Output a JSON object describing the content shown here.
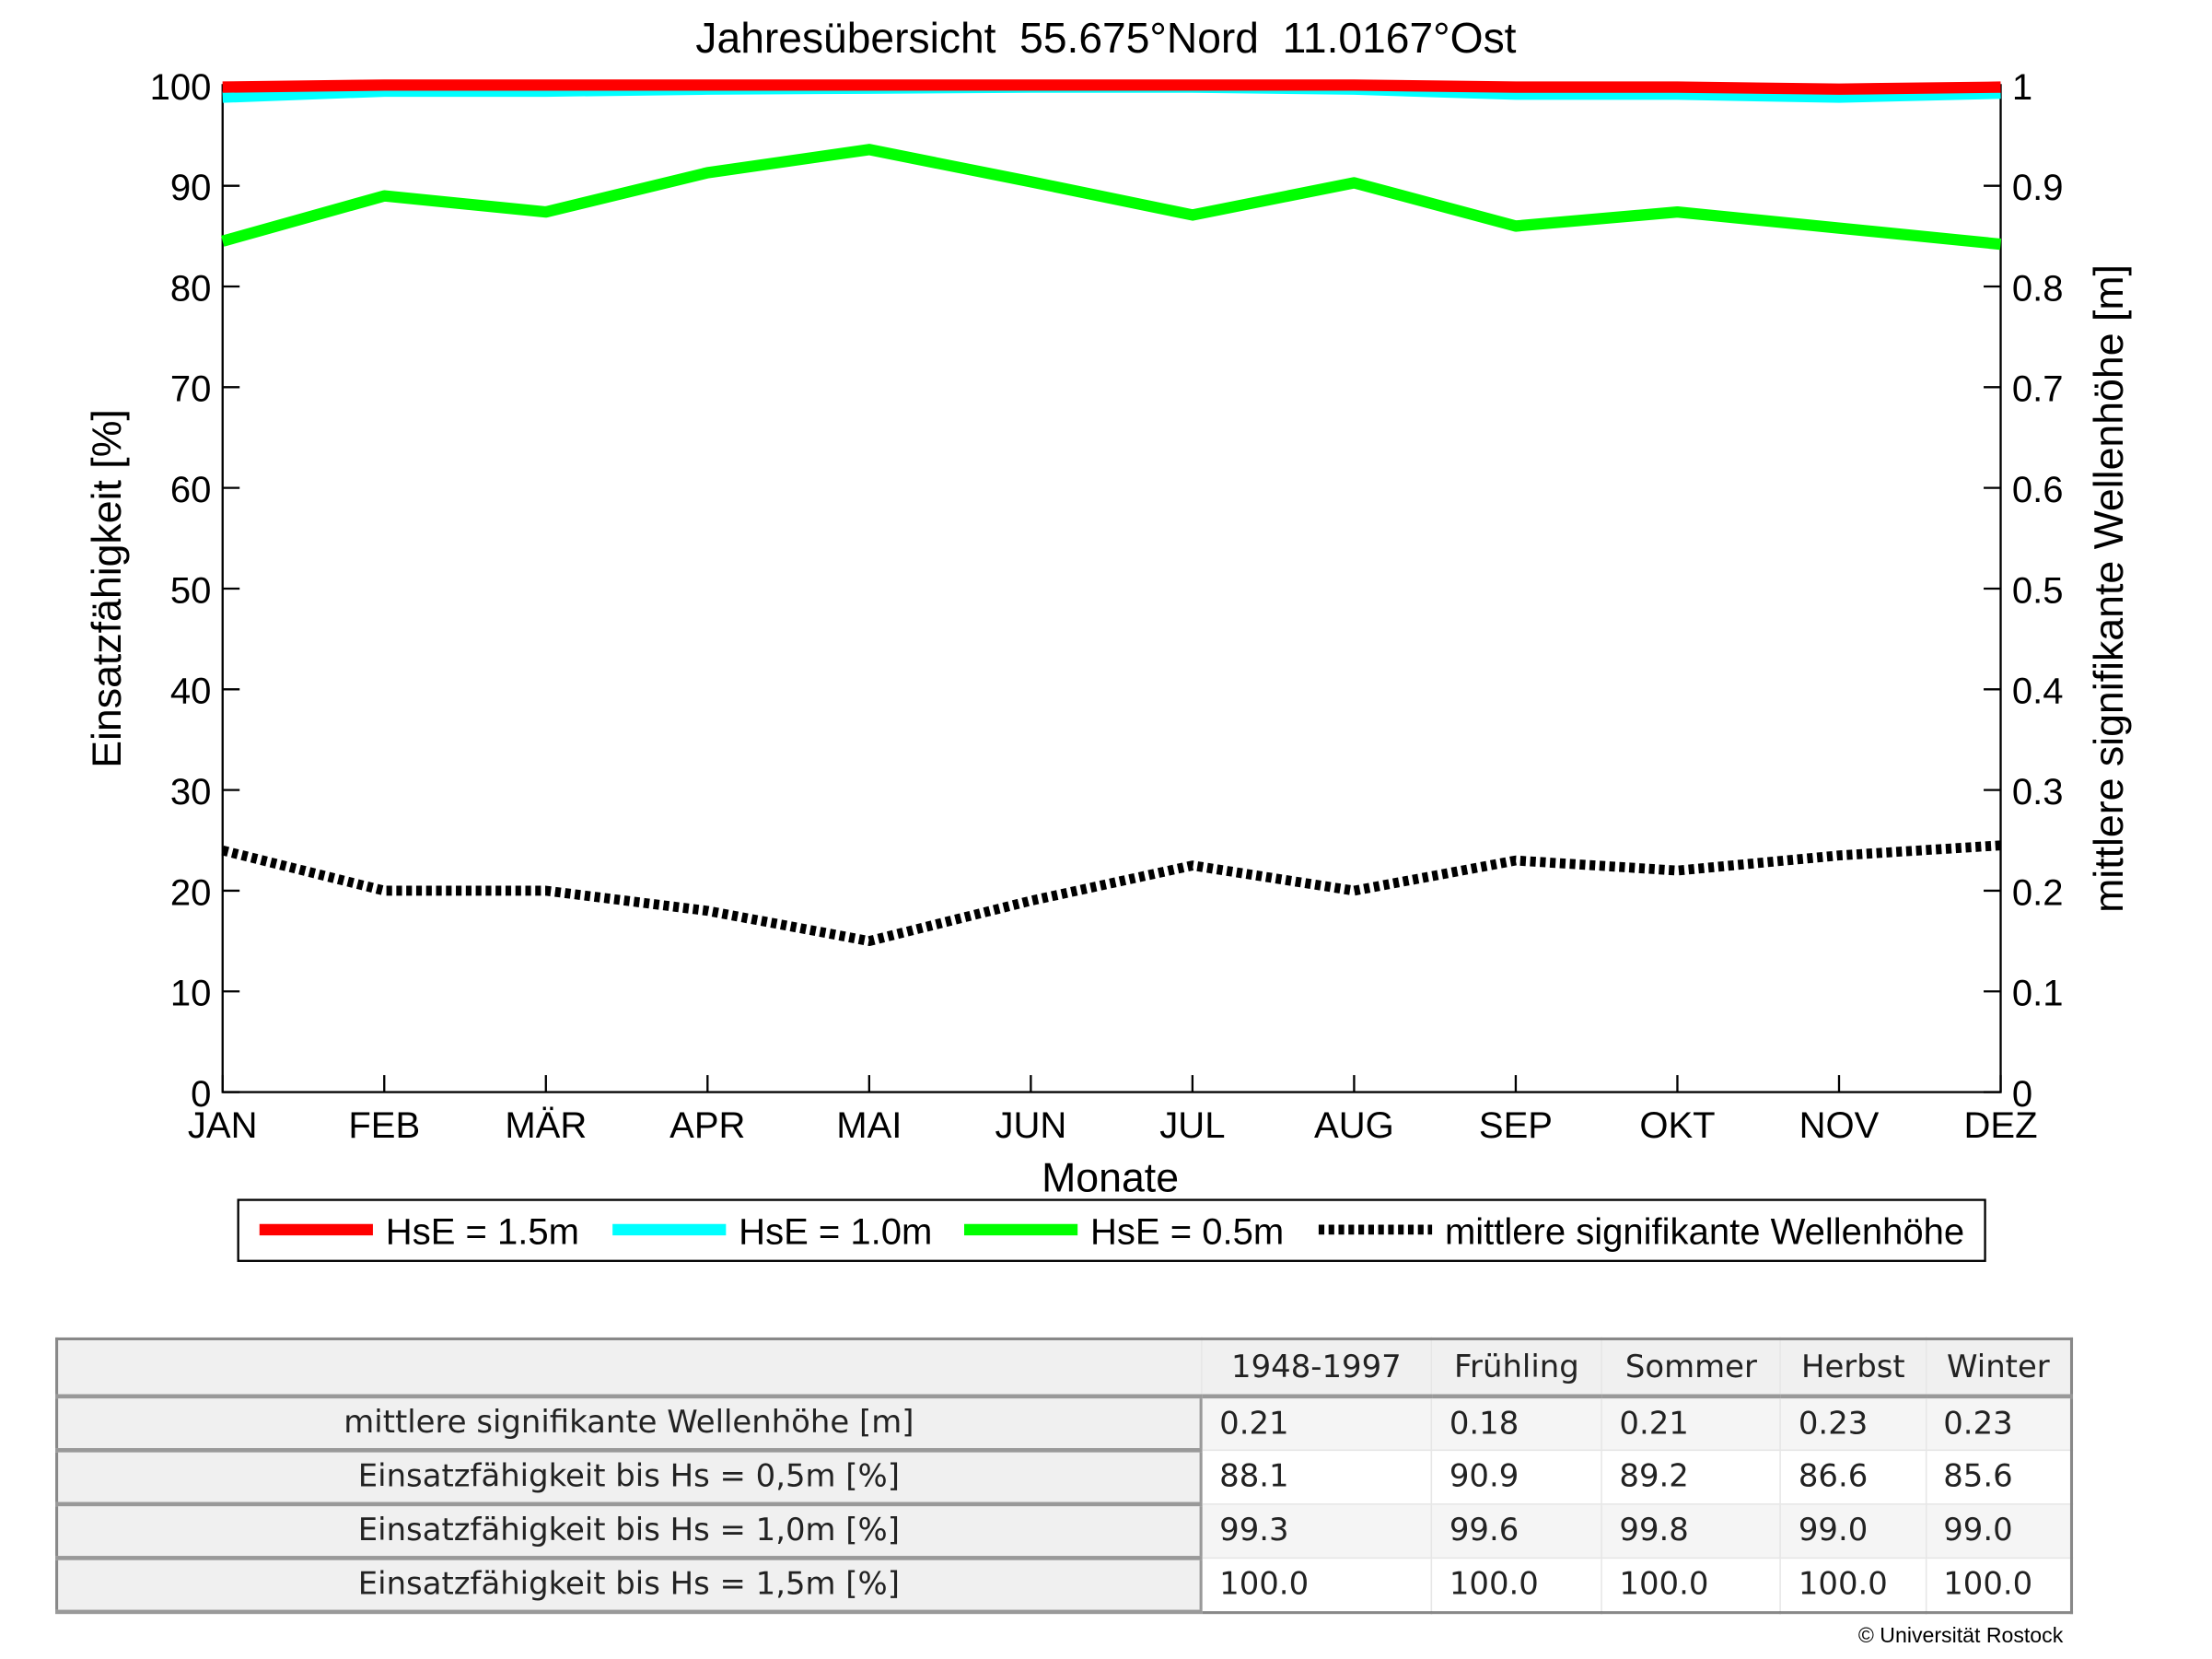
{
  "chart_data": {
    "type": "line",
    "title": "Jahresübersicht  55.675°Nord  11.0167°Ost",
    "xlabel": "Monate",
    "ylabel": "Einsatzfähigkeit [%]",
    "y2label": "mittlere signifikante Wellenhöhe [m]",
    "categories": [
      "JAN",
      "FEB",
      "MÄR",
      "APR",
      "MAI",
      "JUN",
      "JUL",
      "AUG",
      "SEP",
      "OKT",
      "NOV",
      "DEZ"
    ],
    "ylim": [
      0,
      100
    ],
    "y2lim": [
      0,
      1
    ],
    "yticks": [
      "0",
      "10",
      "20",
      "30",
      "40",
      "50",
      "60",
      "70",
      "80",
      "90",
      "100"
    ],
    "y2ticks": [
      "0",
      "0.1",
      "0.2",
      "0.3",
      "0.4",
      "0.5",
      "0.6",
      "0.7",
      "0.8",
      "0.9",
      "1"
    ],
    "legend_position": "bottom",
    "series": [
      {
        "name": "HsE = 1.5m",
        "axis": "left",
        "color": "#ff0000",
        "style": "solid",
        "values": [
          99.8,
          100,
          100,
          100,
          100,
          100,
          100,
          100,
          99.8,
          99.8,
          99.6,
          99.8
        ]
      },
      {
        "name": "HsE = 1.0m",
        "axis": "left",
        "color": "#00ffff",
        "style": "solid",
        "values": [
          98.8,
          99.4,
          99.4,
          99.6,
          99.7,
          99.8,
          99.8,
          99.6,
          99.1,
          99.1,
          98.8,
          99.2
        ]
      },
      {
        "name": "HsE = 0.5m",
        "axis": "left",
        "color": "#00ff00",
        "style": "solid",
        "values": [
          84.5,
          89.0,
          87.4,
          91.3,
          93.6,
          90.4,
          87.1,
          90.3,
          86.0,
          87.4,
          85.8,
          84.2
        ]
      },
      {
        "name": "mittlere signifikante Wellenhöhe",
        "axis": "right",
        "color": "#000000",
        "style": "dotted",
        "values": [
          0.24,
          0.2,
          0.2,
          0.18,
          0.15,
          0.19,
          0.225,
          0.2,
          0.23,
          0.22,
          0.235,
          0.245
        ]
      }
    ]
  },
  "table": {
    "headers": [
      "1948-1997",
      "Frühling",
      "Sommer",
      "Herbst",
      "Winter"
    ],
    "rows": [
      {
        "label": "mittlere signifikante Wellenhöhe [m]",
        "values": [
          "0.21",
          "0.18",
          "0.21",
          "0.23",
          "0.23"
        ]
      },
      {
        "label": "Einsatzfähigkeit bis Hs = 0,5m [%]",
        "values": [
          "88.1",
          "90.9",
          "89.2",
          "86.6",
          "85.6"
        ]
      },
      {
        "label": "Einsatzfähigkeit bis Hs = 1,0m [%]",
        "values": [
          "99.3",
          "99.6",
          "99.8",
          "99.0",
          "99.0"
        ]
      },
      {
        "label": "Einsatzfähigkeit bis Hs = 1,5m [%]",
        "values": [
          "100.0",
          "100.0",
          "100.0",
          "100.0",
          "100.0"
        ]
      }
    ]
  },
  "copyright": "© Universität Rostock"
}
